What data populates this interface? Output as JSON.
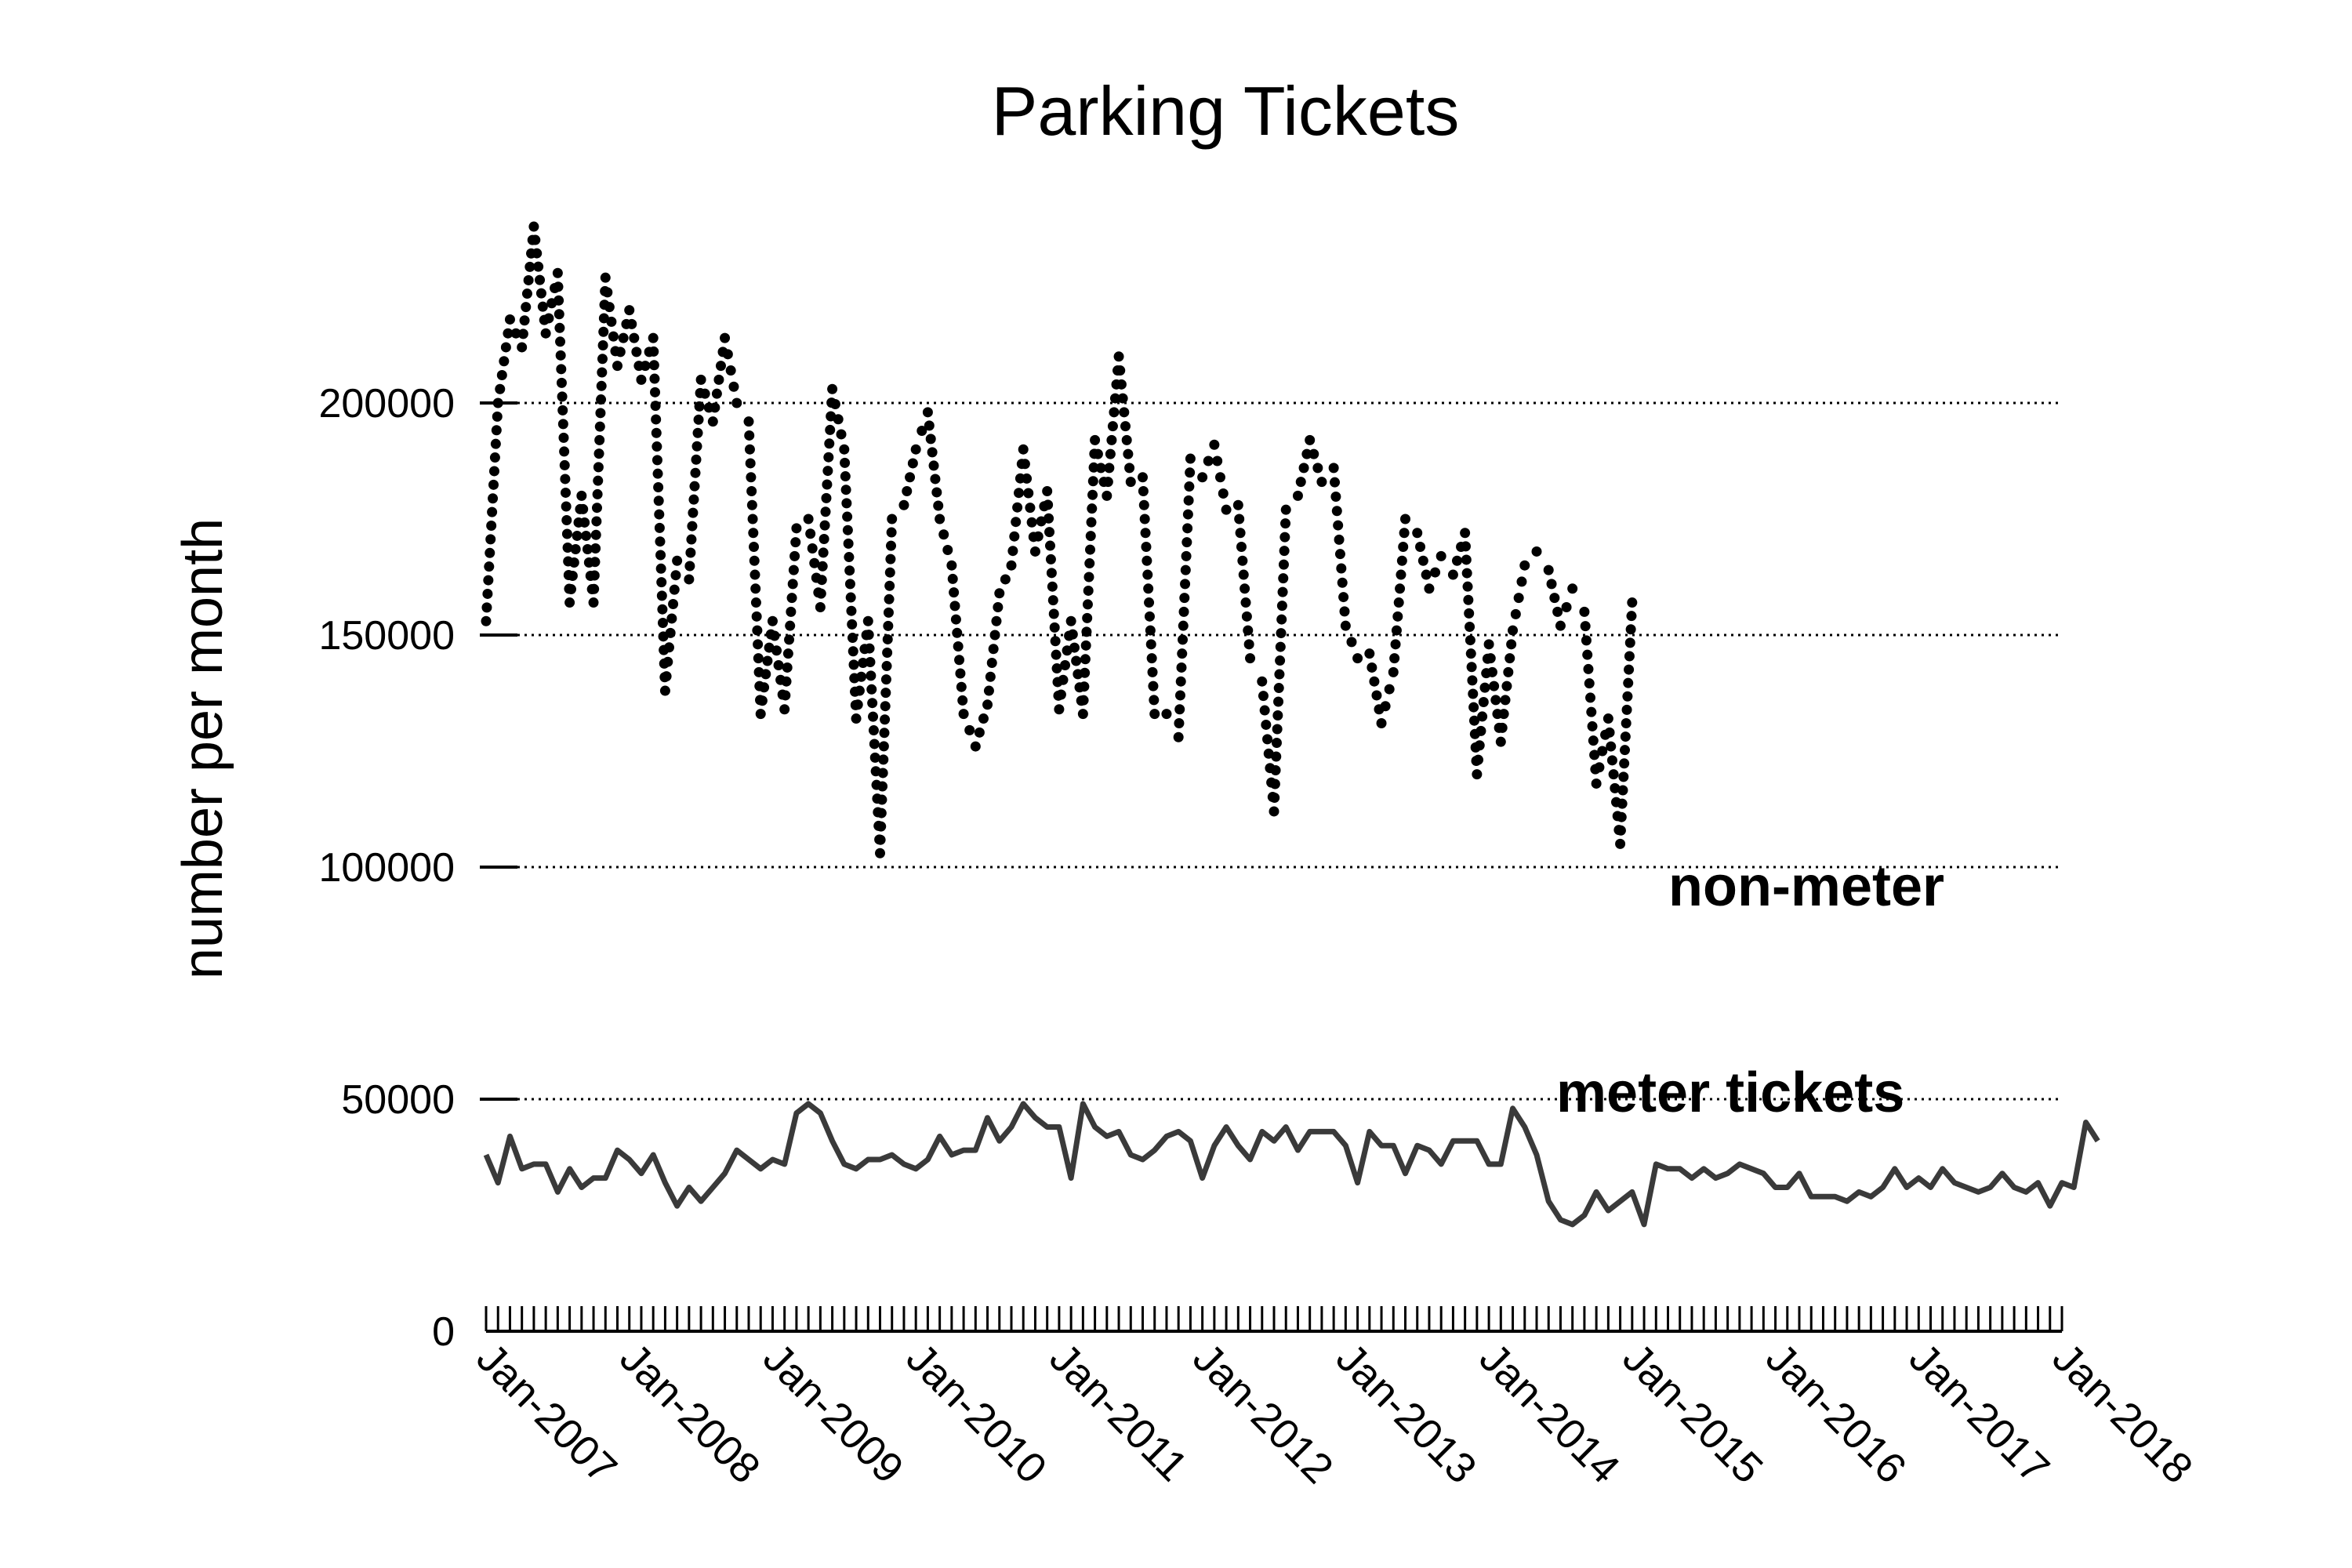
{
  "chart_data": {
    "type": "line",
    "title": "Parking Tickets",
    "xlabel": "",
    "ylabel": "number per month",
    "ylim": [
      0,
      240000
    ],
    "xlim": [
      "2007-01",
      "2018-01"
    ],
    "yticks": [
      0,
      50000,
      100000,
      150000,
      200000
    ],
    "ytick_labels": [
      "0",
      "50000",
      "100000",
      "150000",
      "200000"
    ],
    "xticks": [
      "2007-01",
      "2008-01",
      "2009-01",
      "2010-01",
      "2011-01",
      "2012-01",
      "2013-01",
      "2014-01",
      "2015-01",
      "2016-01",
      "2017-01",
      "2018-01"
    ],
    "xtick_labels": [
      "Jan-2007",
      "Jan-2008",
      "Jan-2009",
      "Jan-2010",
      "Jan-2011",
      "Jan-2012",
      "Jan-2013",
      "Jan-2014",
      "Jan-2015",
      "Jan-2016",
      "Jan-2017",
      "Jan-2018"
    ],
    "grid": "dotted horizontal lines at 50000, 100000, 150000, 200000",
    "legend": "none",
    "annotations": [
      {
        "text": "non-meter",
        "series": "non-meter"
      },
      {
        "text": "meter tickets",
        "series": "meter"
      }
    ],
    "series": [
      {
        "name": "non-meter",
        "style": "dotted",
        "color": "#000000",
        "start": "2007-01",
        "values": [
          153000,
          200000,
          218000,
          212000,
          238000,
          215000,
          228000,
          157000,
          180000,
          157000,
          227000,
          208000,
          220000,
          205000,
          214000,
          138000,
          166000,
          162000,
          205000,
          196000,
          214000,
          200000,
          196000,
          133000,
          153000,
          134000,
          173000,
          175000,
          156000,
          203000,
          190000,
          132000,
          153000,
          103000,
          175000,
          178000,
          190000,
          198000,
          175000,
          165000,
          133000,
          126000,
          135000,
          159000,
          165000,
          190000,
          168000,
          181000,
          134000,
          153000,
          133000,
          192000,
          180000,
          210000,
          183000,
          184000,
          133000,
          133000,
          128000,
          188000,
          184000,
          191000,
          177000,
          178000,
          145000,
          140000,
          112000,
          177000,
          180000,
          192000,
          183000,
          186000,
          152000,
          145000,
          146000,
          131000,
          142000,
          175000,
          172000,
          160000,
          167000,
          163000,
          172000,
          120000,
          148000,
          127000,
          151000,
          165000,
          168000,
          164000,
          152000,
          160000,
          155000,
          118000,
          132000,
          105000,
          157000
        ]
      },
      {
        "name": "meter tickets",
        "style": "solid",
        "color": "#3a3a3a",
        "start": "2007-01",
        "values": [
          38000,
          32000,
          42000,
          35000,
          36000,
          36000,
          30000,
          35000,
          31000,
          33000,
          33000,
          39000,
          37000,
          34000,
          38000,
          32000,
          27000,
          31000,
          28000,
          31000,
          34000,
          39000,
          37000,
          35000,
          37000,
          36000,
          47000,
          49000,
          47000,
          41000,
          36000,
          35000,
          37000,
          37000,
          38000,
          36000,
          35000,
          37000,
          42000,
          38000,
          39000,
          39000,
          46000,
          41000,
          44000,
          49000,
          46000,
          44000,
          44000,
          33000,
          49000,
          44000,
          42000,
          43000,
          38000,
          37000,
          39000,
          42000,
          43000,
          41000,
          33000,
          40000,
          44000,
          40000,
          37000,
          43000,
          41000,
          44000,
          39000,
          43000,
          43000,
          43000,
          40000,
          32000,
          43000,
          40000,
          40000,
          34000,
          40000,
          39000,
          36000,
          41000,
          41000,
          41000,
          36000,
          36000,
          48000,
          44000,
          38000,
          28000,
          24000,
          23000,
          25000,
          30000,
          26000,
          28000,
          30000,
          23000,
          36000,
          35000,
          35000,
          33000,
          35000,
          33000,
          34000,
          36000,
          35000,
          34000,
          31000,
          31000,
          34000,
          29000,
          29000,
          29000,
          28000,
          30000,
          29000,
          31000,
          35000,
          31000,
          33000,
          31000,
          35000,
          32000,
          31000,
          30000,
          31000,
          34000,
          31000,
          30000,
          32000,
          27000,
          32000,
          31000,
          45000,
          41000
        ]
      }
    ]
  }
}
